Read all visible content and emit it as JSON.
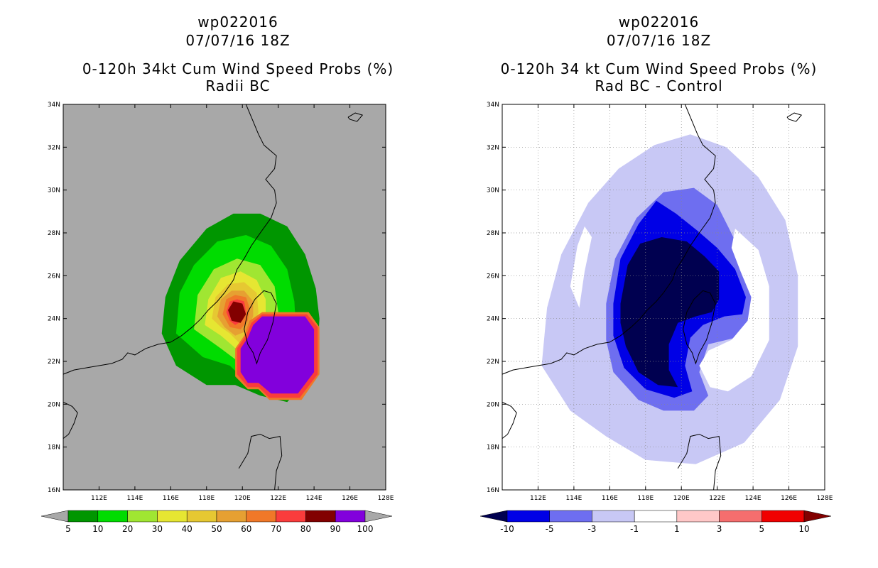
{
  "chart_data": [
    {
      "type": "heatmap",
      "storm_id": "wp022016",
      "date": "07/07/16 18Z",
      "title": "0-120h 34kt Cum Wind Speed Probs (%)",
      "subtitle": "Radii BC",
      "xlim": [
        110,
        128
      ],
      "ylim": [
        16,
        34
      ],
      "x_ticks": [
        "112E",
        "114E",
        "116E",
        "118E",
        "120E",
        "122E",
        "124E",
        "126E",
        "128E"
      ],
      "y_ticks": [
        "16N",
        "18N",
        "20N",
        "22N",
        "24N",
        "26N",
        "28N",
        "30N",
        "32N",
        "34N"
      ],
      "grid": false,
      "background_color": "#a8a8a8",
      "colorbar": {
        "labels": [
          "5",
          "10",
          "20",
          "30",
          "40",
          "50",
          "60",
          "70",
          "80",
          "90",
          "100"
        ],
        "colors": [
          "#a8a8a8",
          "#009600",
          "#00dc00",
          "#a0e632",
          "#e6e632",
          "#e6c832",
          "#e6a032",
          "#f07828",
          "#fa3c3c",
          "#820000",
          "#8200dc",
          "#a8a8a8"
        ],
        "extend": "both"
      },
      "contours": [
        {
          "level": 5,
          "color": "#009600",
          "polygon": [
            [
              115.5,
              23.3
            ],
            [
              115.7,
              25.0
            ],
            [
              116.5,
              26.7
            ],
            [
              118.0,
              28.2
            ],
            [
              119.5,
              28.9
            ],
            [
              121.0,
              28.9
            ],
            [
              122.5,
              28.3
            ],
            [
              123.5,
              27.0
            ],
            [
              124.1,
              25.4
            ],
            [
              124.3,
              24.0
            ],
            [
              124.2,
              22.5
            ],
            [
              123.5,
              21.0
            ],
            [
              122.5,
              20.1
            ],
            [
              121.0,
              20.4
            ],
            [
              119.6,
              20.9
            ],
            [
              118.0,
              20.9
            ],
            [
              116.3,
              21.8
            ]
          ]
        },
        {
          "level": 10,
          "color": "#00dc00",
          "polygon": [
            [
              116.3,
              23.3
            ],
            [
              116.5,
              25.2
            ],
            [
              117.3,
              26.5
            ],
            [
              118.6,
              27.6
            ],
            [
              120.2,
              27.9
            ],
            [
              121.6,
              27.4
            ],
            [
              122.5,
              26.3
            ],
            [
              122.9,
              24.8
            ],
            [
              123.0,
              23.3
            ],
            [
              122.6,
              21.6
            ],
            [
              121.6,
              20.6
            ],
            [
              120.3,
              21.0
            ],
            [
              119.3,
              21.8
            ],
            [
              117.8,
              22.2
            ]
          ]
        },
        {
          "level": 20,
          "color": "#a0e632",
          "polygon": [
            [
              117.3,
              23.5
            ],
            [
              117.5,
              25.1
            ],
            [
              118.4,
              26.3
            ],
            [
              119.7,
              26.8
            ],
            [
              121.0,
              26.5
            ],
            [
              121.8,
              25.5
            ],
            [
              122.0,
              24.3
            ],
            [
              121.8,
              23.1
            ],
            [
              121.2,
              22.1
            ],
            [
              120.3,
              21.6
            ],
            [
              119.6,
              22.1
            ],
            [
              118.8,
              22.6
            ]
          ]
        },
        {
          "level": 30,
          "color": "#e6e632",
          "polygon": [
            [
              117.9,
              23.7
            ],
            [
              118.1,
              24.9
            ],
            [
              118.8,
              25.9
            ],
            [
              119.9,
              26.2
            ],
            [
              120.8,
              25.8
            ],
            [
              121.3,
              24.9
            ],
            [
              121.3,
              23.8
            ],
            [
              120.8,
              22.8
            ],
            [
              120.1,
              22.2
            ],
            [
              119.5,
              22.7
            ],
            [
              118.8,
              23.2
            ]
          ]
        },
        {
          "level": 40,
          "color": "#e6c832",
          "polygon": [
            [
              118.3,
              24.0
            ],
            [
              118.5,
              25.0
            ],
            [
              119.2,
              25.6
            ],
            [
              120.1,
              25.7
            ],
            [
              120.8,
              25.2
            ],
            [
              120.9,
              24.3
            ],
            [
              120.5,
              23.4
            ],
            [
              119.9,
              22.8
            ],
            [
              119.3,
              23.3
            ],
            [
              118.8,
              23.6
            ]
          ]
        },
        {
          "level": 50,
          "color": "#e6a032",
          "polygon": [
            [
              118.6,
              24.1
            ],
            [
              118.8,
              24.9
            ],
            [
              119.4,
              25.3
            ],
            [
              120.1,
              25.3
            ],
            [
              120.6,
              24.8
            ],
            [
              120.6,
              24.1
            ],
            [
              120.2,
              23.4
            ],
            [
              119.6,
              23.2
            ],
            [
              119.0,
              23.6
            ]
          ]
        },
        {
          "level": 60,
          "color": "#f07828",
          "polygon": [
            [
              118.9,
              24.2
            ],
            [
              119.1,
              24.9
            ],
            [
              119.6,
              25.1
            ],
            [
              120.2,
              25.0
            ],
            [
              120.4,
              24.5
            ],
            [
              120.3,
              23.9
            ],
            [
              119.9,
              23.5
            ],
            [
              119.3,
              23.6
            ]
          ]
        },
        {
          "level": 70,
          "color": "#fa3c3c",
          "polygon": [
            [
              119.1,
              24.3
            ],
            [
              119.3,
              24.8
            ],
            [
              119.7,
              24.9
            ],
            [
              120.1,
              24.8
            ],
            [
              120.2,
              24.3
            ],
            [
              120.0,
              23.9
            ],
            [
              119.6,
              23.7
            ],
            [
              119.3,
              23.9
            ]
          ]
        },
        {
          "level": 80,
          "color": "#820000",
          "polygon": [
            [
              119.2,
              24.4
            ],
            [
              119.5,
              24.8
            ],
            [
              120.0,
              24.7
            ],
            [
              120.2,
              24.2
            ],
            [
              119.9,
              23.8
            ],
            [
              119.4,
              23.9
            ]
          ]
        },
        {
          "level": 90,
          "color": "#f07828",
          "polygon": [
            [
              120.4,
              23.9
            ],
            [
              121.1,
              24.3
            ],
            [
              123.7,
              24.3
            ],
            [
              124.3,
              23.6
            ],
            [
              124.3,
              21.4
            ],
            [
              123.3,
              20.2
            ],
            [
              121.5,
              20.2
            ],
            [
              120.9,
              20.7
            ],
            [
              120.3,
              20.7
            ],
            [
              119.6,
              21.3
            ],
            [
              119.6,
              22.6
            ],
            [
              120.1,
              23.2
            ]
          ]
        },
        {
          "level": 95,
          "color": "#fa3c3c",
          "polygon": [
            [
              120.5,
              23.8
            ],
            [
              121.1,
              24.2
            ],
            [
              123.6,
              24.2
            ],
            [
              124.2,
              23.6
            ],
            [
              124.2,
              21.4
            ],
            [
              123.2,
              20.3
            ],
            [
              121.5,
              20.3
            ],
            [
              120.9,
              20.8
            ],
            [
              120.3,
              20.8
            ],
            [
              119.7,
              21.4
            ],
            [
              119.7,
              22.6
            ],
            [
              120.2,
              23.2
            ]
          ]
        },
        {
          "level": 99,
          "color": "#8200dc",
          "polygon": [
            [
              120.6,
              23.7
            ],
            [
              121.1,
              24.1
            ],
            [
              123.5,
              24.1
            ],
            [
              124.0,
              23.5
            ],
            [
              124.0,
              21.5
            ],
            [
              123.1,
              20.5
            ],
            [
              121.6,
              20.5
            ],
            [
              120.9,
              21.0
            ],
            [
              120.3,
              21.0
            ],
            [
              119.9,
              21.5
            ],
            [
              119.9,
              22.6
            ],
            [
              120.3,
              23.1
            ]
          ]
        }
      ]
    },
    {
      "type": "heatmap",
      "storm_id": "wp022016",
      "date": "07/07/16 18Z",
      "title": "0-120h 34 kt Cum Wind Speed Probs (%)",
      "subtitle": "Rad BC - Control",
      "xlim": [
        110,
        128
      ],
      "ylim": [
        16,
        34
      ],
      "x_ticks": [
        "112E",
        "114E",
        "116E",
        "118E",
        "120E",
        "122E",
        "124E",
        "126E",
        "128E"
      ],
      "y_ticks": [
        "16N",
        "18N",
        "20N",
        "22N",
        "24N",
        "26N",
        "28N",
        "30N",
        "32N",
        "34N"
      ],
      "grid": true,
      "background_color": "#ffffff",
      "colorbar": {
        "labels": [
          "-10",
          "-5",
          "-3",
          "-1",
          "1",
          "3",
          "5",
          "10"
        ],
        "colors": [
          "#000050",
          "#0000e6",
          "#6e6ef0",
          "#c8c8f5",
          "#ffffff",
          "#ffc8c8",
          "#f56e6e",
          "#f00000",
          "#820000"
        ],
        "extend": "both"
      },
      "contours": [
        {
          "level": -1,
          "color": "#c8c8f5",
          "polygon": [
            [
              112.2,
              21.8
            ],
            [
              112.5,
              24.5
            ],
            [
              113.3,
              27.0
            ],
            [
              114.8,
              29.4
            ],
            [
              116.5,
              31.0
            ],
            [
              118.5,
              32.1
            ],
            [
              120.5,
              32.6
            ],
            [
              122.5,
              32.0
            ],
            [
              124.3,
              30.6
            ],
            [
              125.8,
              28.6
            ],
            [
              126.5,
              26.0
            ],
            [
              126.5,
              22.7
            ],
            [
              125.5,
              20.2
            ],
            [
              123.5,
              18.2
            ],
            [
              120.8,
              17.2
            ],
            [
              118.0,
              17.4
            ],
            [
              115.8,
              18.5
            ],
            [
              113.8,
              19.7
            ]
          ]
        },
        {
          "level": -3,
          "color": "#6e6ef0",
          "polygon": [
            [
              115.8,
              24.7
            ],
            [
              116.3,
              26.8
            ],
            [
              117.5,
              28.7
            ],
            [
              119.0,
              29.9
            ],
            [
              120.7,
              30.1
            ],
            [
              122.0,
              29.3
            ],
            [
              122.9,
              27.8
            ],
            [
              123.5,
              26.3
            ],
            [
              124.1,
              25.0
            ],
            [
              124.0,
              23.8
            ],
            [
              123.0,
              23.1
            ],
            [
              121.5,
              22.8
            ],
            [
              121.0,
              21.5
            ],
            [
              121.5,
              20.4
            ],
            [
              120.7,
              19.7
            ],
            [
              119.0,
              19.7
            ],
            [
              117.6,
              20.2
            ],
            [
              116.2,
              21.5
            ],
            [
              115.8,
              23.0
            ]
          ]
        },
        {
          "level": -5,
          "color": "#0000e6",
          "polygon": [
            [
              116.2,
              24.7
            ],
            [
              116.6,
              26.8
            ],
            [
              117.6,
              28.4
            ],
            [
              118.6,
              29.5
            ],
            [
              119.7,
              28.9
            ],
            [
              120.9,
              28.1
            ],
            [
              122.0,
              27.3
            ],
            [
              123.0,
              26.3
            ],
            [
              123.6,
              25.0
            ],
            [
              123.4,
              24.2
            ],
            [
              122.4,
              24.1
            ],
            [
              121.2,
              23.7
            ],
            [
              120.5,
              23.1
            ],
            [
              120.2,
              21.8
            ],
            [
              120.6,
              20.6
            ],
            [
              119.6,
              20.3
            ],
            [
              118.0,
              20.7
            ],
            [
              116.8,
              21.7
            ],
            [
              116.2,
              23.2
            ]
          ]
        },
        {
          "level": -10,
          "color": "#000050",
          "polygon": [
            [
              116.6,
              24.7
            ],
            [
              117.0,
              26.5
            ],
            [
              117.7,
              27.5
            ],
            [
              118.9,
              27.8
            ],
            [
              120.3,
              27.6
            ],
            [
              121.3,
              26.9
            ],
            [
              122.1,
              26.2
            ],
            [
              122.1,
              24.9
            ],
            [
              121.7,
              24.3
            ],
            [
              120.8,
              24.1
            ],
            [
              119.8,
              23.8
            ],
            [
              119.3,
              22.8
            ],
            [
              119.3,
              21.6
            ],
            [
              119.8,
              20.8
            ],
            [
              118.7,
              20.9
            ],
            [
              117.6,
              21.5
            ],
            [
              116.9,
              22.7
            ],
            [
              116.6,
              23.8
            ]
          ]
        },
        {
          "level": -1,
          "color": "#ffffff",
          "polygon": [
            [
              123.0,
              28.2
            ],
            [
              124.3,
              27.2
            ],
            [
              124.9,
              25.5
            ],
            [
              124.9,
              23.0
            ],
            [
              123.9,
              21.3
            ],
            [
              122.6,
              20.6
            ],
            [
              121.6,
              20.8
            ],
            [
              121.0,
              21.8
            ],
            [
              121.5,
              22.5
            ],
            [
              122.8,
              23.0
            ],
            [
              123.7,
              23.9
            ],
            [
              123.9,
              25.0
            ],
            [
              123.3,
              26.2
            ],
            [
              122.8,
              27.3
            ]
          ]
        },
        {
          "level": -1,
          "color": "#ffffff",
          "polygon": [
            [
              113.8,
              25.5
            ],
            [
              114.2,
              27.4
            ],
            [
              114.6,
              28.3
            ],
            [
              115.0,
              27.8
            ],
            [
              114.6,
              26.2
            ],
            [
              114.3,
              24.5
            ]
          ]
        }
      ]
    }
  ]
}
